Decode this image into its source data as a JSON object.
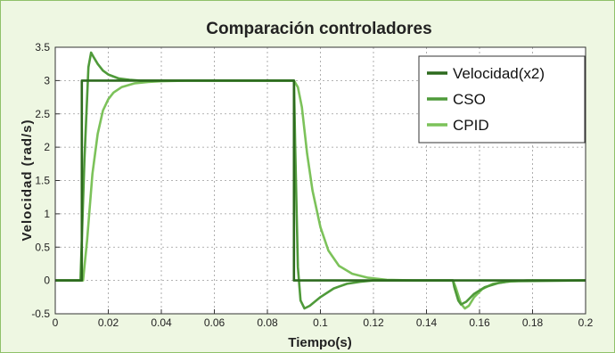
{
  "chart_data": {
    "type": "line",
    "title": "Comparación controladores",
    "xlabel": "Tiempo(s)",
    "ylabel": "Velocidad (rad/s)",
    "xlim": [
      0,
      0.2
    ],
    "ylim": [
      -0.5,
      3.5
    ],
    "xticks": [
      "0",
      "0.02",
      "0.04",
      "0.06",
      "0.08",
      "0.1",
      "0.12",
      "0.14",
      "0.16",
      "0.18",
      "0.2"
    ],
    "yticks": [
      "-0.5",
      "0",
      "0.5",
      "1",
      "1.5",
      "2",
      "2.5",
      "3",
      "3.5"
    ],
    "grid": true,
    "legend_position": "top-right",
    "series": [
      {
        "name": "Velocidad(x2)",
        "color": "#2d6a1e",
        "x": [
          0,
          0.01,
          0.01,
          0.09,
          0.09,
          0.2
        ],
        "y": [
          0,
          0,
          3,
          3,
          0,
          0
        ]
      },
      {
        "name": "CSO",
        "color": "#4f9a3a",
        "x": [
          0,
          0.0095,
          0.011,
          0.0125,
          0.0135,
          0.0145,
          0.016,
          0.018,
          0.02,
          0.024,
          0.028,
          0.032,
          0.04,
          0.05,
          0.09,
          0.0905,
          0.0915,
          0.0925,
          0.094,
          0.096,
          0.1,
          0.105,
          0.11,
          0.115,
          0.12,
          0.15,
          0.1505,
          0.152,
          0.153,
          0.155,
          0.158,
          0.162,
          0.167,
          0.172,
          0.2
        ],
        "y": [
          0,
          0,
          1.8,
          3.2,
          3.42,
          3.35,
          3.25,
          3.15,
          3.09,
          3.03,
          3.01,
          3.0,
          3.0,
          3.0,
          3.0,
          2.0,
          0.2,
          -0.3,
          -0.42,
          -0.38,
          -0.25,
          -0.12,
          -0.05,
          -0.02,
          0,
          0,
          -0.1,
          -0.3,
          -0.36,
          -0.32,
          -0.2,
          -0.1,
          -0.04,
          -0.01,
          0
        ]
      },
      {
        "name": "CPID",
        "color": "#7cc25a",
        "x": [
          0,
          0.0105,
          0.012,
          0.014,
          0.016,
          0.018,
          0.02,
          0.022,
          0.025,
          0.03,
          0.035,
          0.04,
          0.05,
          0.09,
          0.0915,
          0.093,
          0.095,
          0.097,
          0.1,
          0.103,
          0.107,
          0.112,
          0.118,
          0.125,
          0.135,
          0.15,
          0.151,
          0.153,
          0.1545,
          0.156,
          0.158,
          0.161,
          0.165,
          0.17,
          0.178,
          0.2
        ],
        "y": [
          0,
          0,
          0.6,
          1.6,
          2.2,
          2.55,
          2.72,
          2.82,
          2.9,
          2.96,
          2.98,
          2.99,
          3.0,
          3.0,
          2.9,
          2.6,
          1.9,
          1.35,
          0.8,
          0.45,
          0.22,
          0.1,
          0.04,
          0.01,
          0,
          0,
          -0.1,
          -0.35,
          -0.42,
          -0.38,
          -0.25,
          -0.13,
          -0.05,
          -0.02,
          0,
          0
        ]
      }
    ]
  }
}
